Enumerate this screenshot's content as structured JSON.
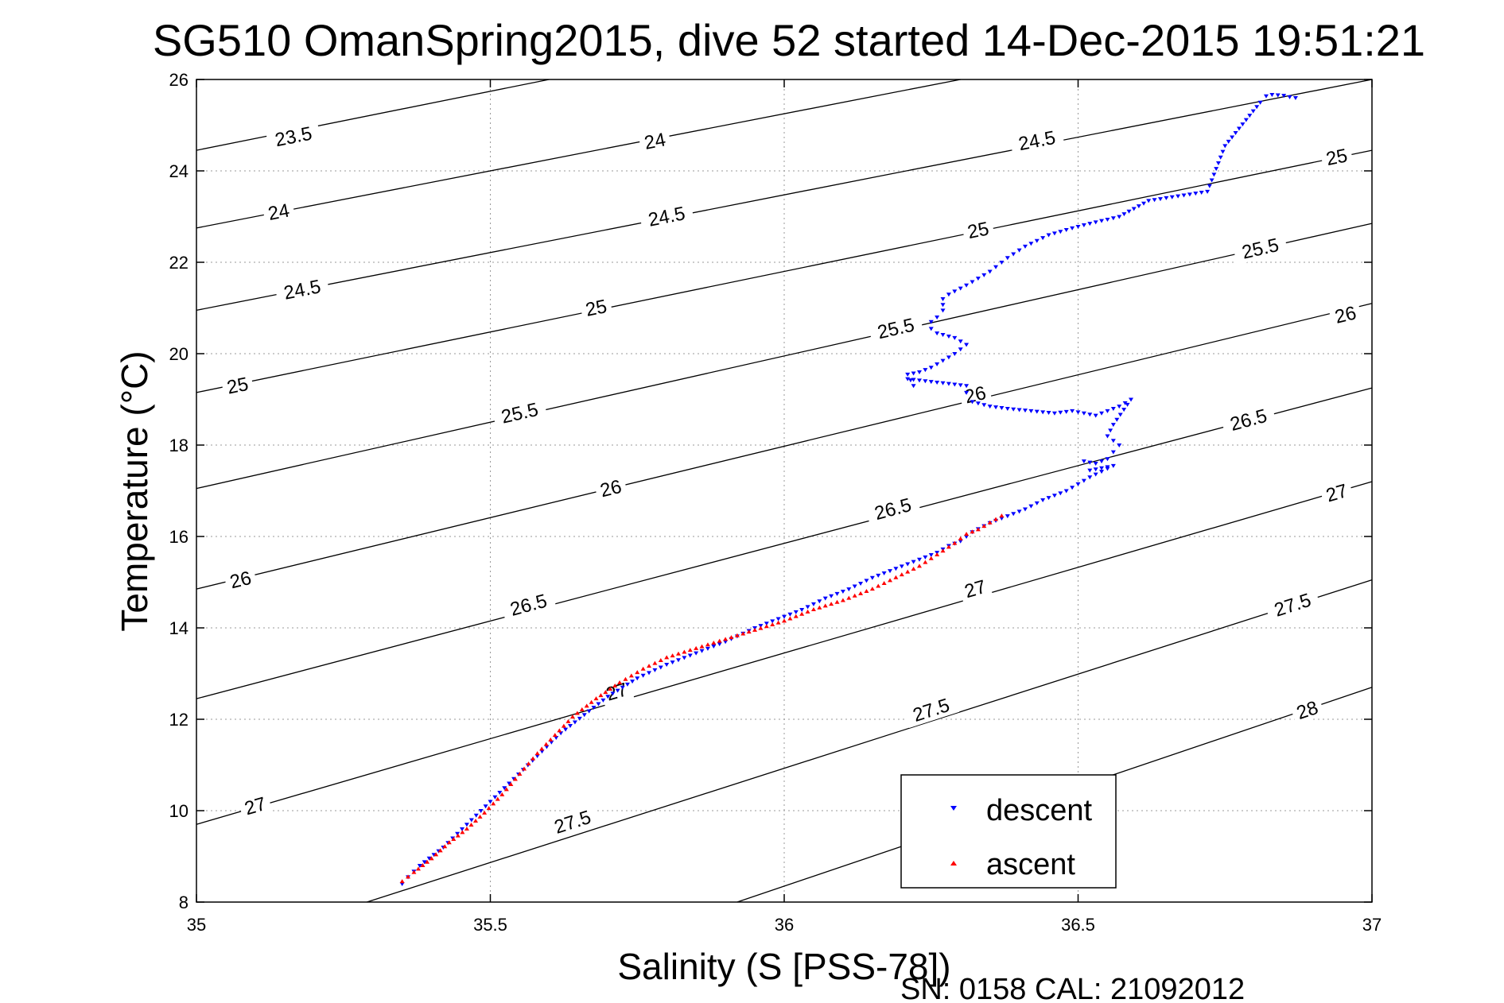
{
  "chart_data": {
    "type": "scatter",
    "title": "SG510 OmanSpring2015, dive 52 started 14-Dec-2015 19:51:21",
    "xlabel": "Salinity (S [PSS-78])",
    "ylabel": "Temperature (°C)",
    "xlim": [
      35,
      37
    ],
    "ylim": [
      8,
      26
    ],
    "x_ticks": [
      "35",
      "35.5",
      "36",
      "36.5",
      "37"
    ],
    "y_ticks": [
      "8",
      "10",
      "12",
      "14",
      "16",
      "18",
      "20",
      "22",
      "24",
      "26"
    ],
    "grid": true,
    "legend_position": "bottom-right",
    "footer": "SN: 0158  CAL: 21092012",
    "contours": [
      {
        "label": "23.5",
        "start": [
          35.0,
          24.45
        ],
        "end": [
          35.6,
          26.0
        ],
        "label_at": [
          35.165,
          24.75
        ]
      },
      {
        "label": "24",
        "start": [
          35.0,
          22.75
        ],
        "end": [
          36.3,
          26.0
        ],
        "label_at": [
          35.14,
          23.1
        ]
      },
      {
        "label": "24",
        "start": [
          35.0,
          22.75
        ],
        "end": [
          36.3,
          26.0
        ],
        "label_at": [
          35.78,
          24.65
        ]
      },
      {
        "label": "24.5",
        "start": [
          35.0,
          20.95
        ],
        "end": [
          37.0,
          26.0
        ],
        "label_at": [
          35.18,
          21.4
        ]
      },
      {
        "label": "24.5",
        "start": [
          35.0,
          20.95
        ],
        "end": [
          37.0,
          26.0
        ],
        "label_at": [
          35.8,
          23.0
        ]
      },
      {
        "label": "24.5",
        "start": [
          35.0,
          20.95
        ],
        "end": [
          37.0,
          26.0
        ],
        "label_at": [
          36.43,
          24.66
        ]
      },
      {
        "label": "25",
        "start": [
          35.0,
          19.15
        ],
        "end": [
          37.0,
          24.45
        ],
        "label_at": [
          35.07,
          19.3
        ]
      },
      {
        "label": "25",
        "start": [
          35.0,
          19.15
        ],
        "end": [
          37.0,
          24.45
        ],
        "label_at": [
          35.68,
          21.0
        ]
      },
      {
        "label": "25",
        "start": [
          35.0,
          19.15
        ],
        "end": [
          37.0,
          24.45
        ],
        "label_at": [
          36.33,
          22.7
        ]
      },
      {
        "label": "25",
        "start": [
          35.0,
          19.15
        ],
        "end": [
          37.0,
          24.45
        ],
        "label_at": [
          36.94,
          24.3
        ]
      },
      {
        "label": "25.5",
        "start": [
          35.0,
          17.05
        ],
        "end": [
          37.0,
          22.85
        ],
        "label_at": [
          35.55,
          18.7
        ]
      },
      {
        "label": "25.5",
        "start": [
          35.0,
          17.05
        ],
        "end": [
          37.0,
          22.85
        ],
        "label_at": [
          36.19,
          20.55
        ]
      },
      {
        "label": "25.5",
        "start": [
          35.0,
          17.05
        ],
        "end": [
          37.0,
          22.85
        ],
        "label_at": [
          36.81,
          22.3
        ]
      },
      {
        "label": "26",
        "start": [
          35.0,
          14.85
        ],
        "end": [
          37.0,
          21.1
        ],
        "label_at": [
          35.075,
          15.05
        ]
      },
      {
        "label": "26",
        "start": [
          35.0,
          14.85
        ],
        "end": [
          37.0,
          21.1
        ],
        "label_at": [
          35.705,
          17.05
        ]
      },
      {
        "label": "26",
        "start": [
          35.0,
          14.85
        ],
        "end": [
          37.0,
          21.1
        ],
        "label_at": [
          36.325,
          19.1
        ]
      },
      {
        "label": "26",
        "start": [
          35.0,
          14.85
        ],
        "end": [
          37.0,
          21.1
        ],
        "label_at": [
          36.955,
          20.85
        ]
      },
      {
        "label": "26.5",
        "start": [
          35.0,
          12.45
        ],
        "end": [
          37.0,
          19.25
        ],
        "label_at": [
          35.565,
          14.5
        ]
      },
      {
        "label": "26.5",
        "start": [
          35.0,
          12.45
        ],
        "end": [
          37.0,
          19.25
        ],
        "label_at": [
          36.185,
          16.6
        ]
      },
      {
        "label": "26.5",
        "start": [
          35.0,
          12.45
        ],
        "end": [
          37.0,
          19.25
        ],
        "label_at": [
          36.79,
          18.55
        ]
      },
      {
        "label": "27",
        "start": [
          35.0,
          9.7
        ],
        "end": [
          37.0,
          17.2
        ],
        "label_at": [
          35.1,
          10.1
        ]
      },
      {
        "label": "27",
        "start": [
          35.0,
          9.7
        ],
        "end": [
          37.0,
          17.2
        ],
        "label_at": [
          35.715,
          12.6
        ]
      },
      {
        "label": "27",
        "start": [
          35.0,
          9.7
        ],
        "end": [
          37.0,
          17.2
        ],
        "label_at": [
          36.325,
          14.85
        ]
      },
      {
        "label": "27",
        "start": [
          35.0,
          9.7
        ],
        "end": [
          37.0,
          17.2
        ],
        "label_at": [
          36.94,
          16.95
        ]
      },
      {
        "label": "27.5",
        "start": [
          35.29,
          8.0
        ],
        "end": [
          37.0,
          15.05
        ],
        "label_at": [
          35.64,
          9.75
        ]
      },
      {
        "label": "27.5",
        "start": [
          35.29,
          8.0
        ],
        "end": [
          37.0,
          15.05
        ],
        "label_at": [
          36.25,
          12.2
        ]
      },
      {
        "label": "27.5",
        "start": [
          35.29,
          8.0
        ],
        "end": [
          37.0,
          15.05
        ],
        "label_at": [
          36.865,
          14.5
        ]
      },
      {
        "label": "28",
        "start": [
          35.92,
          8.0
        ],
        "end": [
          37.0,
          12.7
        ],
        "label_at": [
          36.89,
          12.2
        ]
      }
    ],
    "series": [
      {
        "name": "descent",
        "color": "#0000ff",
        "marker": "triangle-down",
        "points": [
          [
            36.87,
            25.6
          ],
          [
            36.86,
            25.62
          ],
          [
            36.85,
            25.65
          ],
          [
            36.83,
            25.67
          ],
          [
            36.82,
            25.64
          ],
          [
            36.81,
            25.5
          ],
          [
            36.75,
            24.55
          ],
          [
            36.72,
            23.55
          ],
          [
            36.62,
            23.35
          ],
          [
            36.57,
            23.0
          ],
          [
            36.52,
            22.85
          ],
          [
            36.49,
            22.75
          ],
          [
            36.45,
            22.6
          ],
          [
            36.41,
            22.35
          ],
          [
            36.38,
            22.1
          ],
          [
            36.37,
            22.0
          ],
          [
            36.35,
            21.8
          ],
          [
            36.33,
            21.65
          ],
          [
            36.31,
            21.5
          ],
          [
            36.28,
            21.3
          ],
          [
            36.27,
            21.2
          ],
          [
            36.27,
            20.95
          ],
          [
            36.26,
            20.8
          ],
          [
            36.25,
            20.7
          ],
          [
            36.25,
            20.55
          ],
          [
            36.26,
            20.45
          ],
          [
            36.29,
            20.35
          ],
          [
            36.31,
            20.2
          ],
          [
            36.29,
            20.0
          ],
          [
            36.27,
            19.85
          ],
          [
            36.25,
            19.7
          ],
          [
            36.23,
            19.6
          ],
          [
            36.21,
            19.55
          ],
          [
            36.22,
            19.3
          ],
          [
            36.21,
            19.45
          ],
          [
            36.31,
            19.3
          ],
          [
            36.31,
            19.15
          ],
          [
            36.32,
            18.95
          ],
          [
            36.35,
            18.85
          ],
          [
            36.38,
            18.8
          ],
          [
            36.42,
            18.75
          ],
          [
            36.46,
            18.7
          ],
          [
            36.49,
            18.75
          ],
          [
            36.53,
            18.65
          ],
          [
            36.57,
            18.85
          ],
          [
            36.59,
            19.0
          ],
          [
            36.56,
            18.45
          ],
          [
            36.55,
            18.2
          ],
          [
            36.57,
            18.0
          ],
          [
            36.56,
            17.85
          ],
          [
            36.55,
            17.7
          ],
          [
            36.53,
            17.6
          ],
          [
            36.51,
            17.65
          ],
          [
            36.52,
            17.45
          ],
          [
            36.56,
            17.55
          ],
          [
            36.52,
            17.3
          ],
          [
            36.5,
            17.15
          ],
          [
            36.48,
            17.0
          ],
          [
            36.46,
            16.9
          ],
          [
            36.44,
            16.8
          ],
          [
            36.41,
            16.6
          ],
          [
            36.38,
            16.45
          ],
          [
            36.35,
            16.3
          ],
          [
            36.32,
            16.1
          ],
          [
            36.3,
            15.9
          ],
          [
            36.28,
            15.8
          ],
          [
            36.26,
            15.65
          ],
          [
            36.23,
            15.5
          ],
          [
            36.19,
            15.3
          ],
          [
            36.15,
            15.1
          ],
          [
            36.11,
            14.85
          ],
          [
            36.07,
            14.65
          ],
          [
            36.03,
            14.4
          ],
          [
            35.99,
            14.2
          ],
          [
            35.95,
            14.0
          ],
          [
            35.9,
            13.7
          ],
          [
            35.85,
            13.45
          ],
          [
            35.8,
            13.2
          ],
          [
            35.75,
            12.9
          ],
          [
            35.7,
            12.5
          ],
          [
            35.66,
            12.1
          ],
          [
            35.62,
            11.7
          ],
          [
            35.58,
            11.2
          ],
          [
            35.54,
            10.7
          ],
          [
            35.5,
            10.2
          ],
          [
            35.46,
            9.7
          ],
          [
            35.42,
            9.2
          ],
          [
            35.38,
            8.8
          ],
          [
            35.36,
            8.55
          ],
          [
            35.35,
            8.4
          ]
        ]
      },
      {
        "name": "ascent",
        "color": "#ff0000",
        "marker": "triangle-up",
        "points": [
          [
            35.35,
            8.45
          ],
          [
            35.37,
            8.65
          ],
          [
            35.4,
            8.95
          ],
          [
            35.43,
            9.3
          ],
          [
            35.46,
            9.6
          ],
          [
            35.49,
            9.95
          ],
          [
            35.52,
            10.35
          ],
          [
            35.55,
            10.8
          ],
          [
            35.58,
            11.25
          ],
          [
            35.61,
            11.65
          ],
          [
            35.64,
            12.05
          ],
          [
            35.68,
            12.45
          ],
          [
            35.72,
            12.8
          ],
          [
            35.76,
            13.1
          ],
          [
            35.8,
            13.35
          ],
          [
            35.85,
            13.55
          ],
          [
            35.9,
            13.75
          ],
          [
            35.95,
            13.95
          ],
          [
            36.0,
            14.15
          ],
          [
            36.05,
            14.4
          ],
          [
            36.1,
            14.6
          ],
          [
            36.15,
            14.85
          ],
          [
            36.19,
            15.1
          ],
          [
            36.23,
            15.35
          ],
          [
            36.26,
            15.6
          ],
          [
            36.29,
            15.85
          ],
          [
            36.31,
            16.05
          ],
          [
            36.33,
            16.15
          ],
          [
            36.37,
            16.45
          ]
        ]
      }
    ]
  }
}
